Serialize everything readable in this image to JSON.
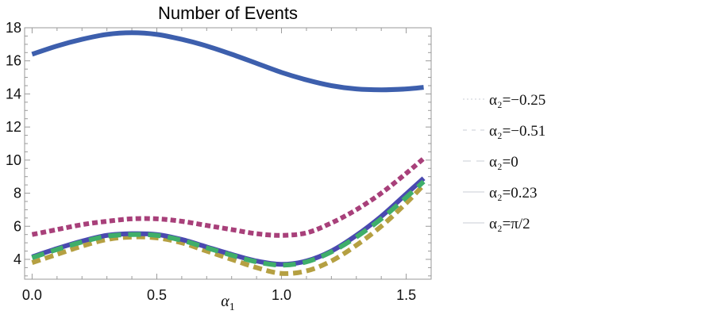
{
  "chart_data": {
    "type": "line",
    "title": "Number of Events",
    "xlabel": "α",
    "xlabel_sub": "1",
    "ylabel": "",
    "xlim": [
      -0.03,
      1.6
    ],
    "ylim": [
      2.8,
      18
    ],
    "x_ticks": [
      0.0,
      0.5,
      1.0,
      1.5
    ],
    "x_tick_labels": [
      "0.0",
      "0.5",
      "1.0",
      "1.5"
    ],
    "y_ticks": [
      4,
      6,
      8,
      10,
      12,
      14,
      16,
      18
    ],
    "y_tick_labels": [
      "4",
      "6",
      "8",
      "10",
      "12",
      "14",
      "16",
      "18"
    ],
    "grid": false,
    "legend_position": "right",
    "x": [
      0.0,
      0.1,
      0.2,
      0.3,
      0.4,
      0.5,
      0.6,
      0.7,
      0.8,
      0.9,
      1.0,
      1.1,
      1.2,
      1.3,
      1.4,
      1.5,
      1.57
    ],
    "series": [
      {
        "name": "α₂=π/2",
        "legend_label": "α₂=π/2",
        "color": "#3d5fad",
        "style": "solid",
        "values": [
          16.4,
          16.9,
          17.3,
          17.6,
          17.7,
          17.6,
          17.3,
          16.9,
          16.4,
          15.85,
          15.3,
          14.85,
          14.5,
          14.3,
          14.25,
          14.3,
          14.4
        ]
      },
      {
        "name": "α₂=−0.25",
        "legend_label": "α₂=−0.25",
        "color": "#a8407a",
        "style": "dotted",
        "values": [
          5.5,
          5.8,
          6.1,
          6.3,
          6.45,
          6.45,
          6.3,
          6.05,
          5.8,
          5.55,
          5.45,
          5.6,
          6.2,
          7.0,
          8.0,
          9.2,
          10.1
        ]
      },
      {
        "name": "α₂=0.23",
        "legend_label": "α₂=0.23",
        "color": "#4a49b0",
        "style": "solid",
        "values": [
          4.15,
          4.65,
          5.1,
          5.45,
          5.55,
          5.5,
          5.2,
          4.75,
          4.3,
          3.9,
          3.7,
          3.9,
          4.5,
          5.45,
          6.6,
          7.95,
          8.9
        ]
      },
      {
        "name": "α₂=0",
        "legend_label": "α₂=0",
        "color": "#3fae6a",
        "style": "dashed",
        "values": [
          4.1,
          4.6,
          5.05,
          5.4,
          5.5,
          5.45,
          5.15,
          4.7,
          4.25,
          3.85,
          3.65,
          3.85,
          4.45,
          5.35,
          6.45,
          7.75,
          8.7
        ]
      },
      {
        "name": "α₂=−0.51",
        "legend_label": "α₂=−0.51",
        "color": "#b5a042",
        "style": "dashed-long",
        "values": [
          3.8,
          4.3,
          4.8,
          5.2,
          5.35,
          5.3,
          5.0,
          4.5,
          4.0,
          3.5,
          3.15,
          3.3,
          3.9,
          4.85,
          6.0,
          7.4,
          8.5
        ]
      }
    ],
    "legend_order": [
      {
        "label": "α₂=−0.25",
        "style": "dotted"
      },
      {
        "label": "α₂=−0.51",
        "style": "dashed-long"
      },
      {
        "label": "α₂=0",
        "style": "dashed"
      },
      {
        "label": "α₂=0.23",
        "style": "solid"
      },
      {
        "label": "α₂=π/2",
        "style": "solid"
      }
    ]
  }
}
